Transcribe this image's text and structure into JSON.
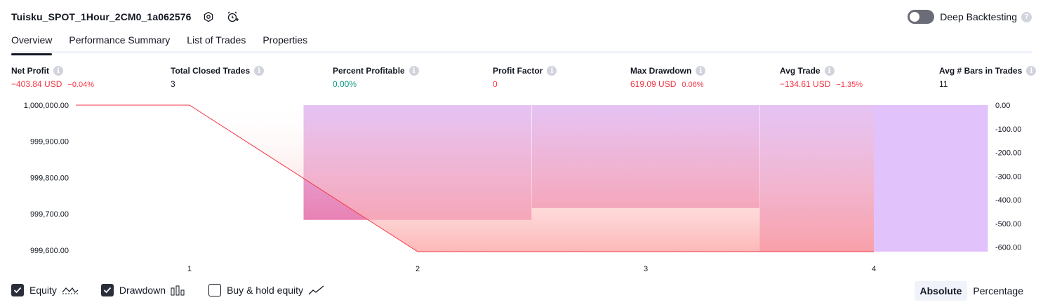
{
  "header": {
    "strategy_name": "Tuisku_SPOT_1Hour_2CM0_1a062576",
    "deep_backtesting_label": "Deep Backtesting"
  },
  "tabs": [
    "Overview",
    "Performance Summary",
    "List of Trades",
    "Properties"
  ],
  "stats": {
    "net_profit": {
      "label": "Net Profit",
      "value": "−403.84 USD",
      "pct": "−0.04%"
    },
    "total_closed_trades": {
      "label": "Total Closed Trades",
      "value": "3"
    },
    "percent_profitable": {
      "label": "Percent Profitable",
      "value": "0.00%"
    },
    "profit_factor": {
      "label": "Profit Factor",
      "value": "0"
    },
    "max_drawdown": {
      "label": "Max Drawdown",
      "value": "619.09 USD",
      "pct": "0.06%"
    },
    "avg_trade": {
      "label": "Avg Trade",
      "value": "−134.61 USD",
      "pct": "−1.35%"
    },
    "avg_bars": {
      "label": "Avg # Bars in Trades",
      "value": "11"
    }
  },
  "footer": {
    "equity_label": "Equity",
    "drawdown_label": "Drawdown",
    "buyhold_label": "Buy & hold equity",
    "absolute_label": "Absolute",
    "percentage_label": "Percentage"
  },
  "chart_data": {
    "type": "area",
    "x_ticks": [
      "1",
      "2",
      "3",
      "4"
    ],
    "left_axis": {
      "ticks": [
        "1,000,000.00",
        "999,900.00",
        "999,800.00",
        "999,700.00",
        "999,600.00"
      ],
      "range": [
        999596,
        1000000
      ]
    },
    "right_axis": {
      "ticks": [
        "0.00",
        "-100.00",
        "-200.00",
        "-300.00",
        "-400.00",
        "-500.00",
        "-600.00"
      ],
      "range": [
        -619.09,
        0
      ]
    },
    "equity": {
      "x": [
        0,
        1,
        2,
        3,
        4
      ],
      "values": [
        1000000,
        999596,
        999596,
        999596,
        999596
      ]
    },
    "drawdown": {
      "segments": [
        {
          "x_from": 1.5,
          "x_to": 2.5,
          "value": -485
        },
        {
          "x_from": 2.5,
          "x_to": 3.5,
          "value": -435
        },
        {
          "x_from": 3.5,
          "x_to": 4.0,
          "value": -619.09
        },
        {
          "x_from": 4.0,
          "x_to": 4.5,
          "value": -619.09
        }
      ]
    },
    "colors": {
      "equity": "#f23645",
      "drawdown_top": "#e0c0f5",
      "drawdown_bottom": "#e880b0"
    }
  }
}
